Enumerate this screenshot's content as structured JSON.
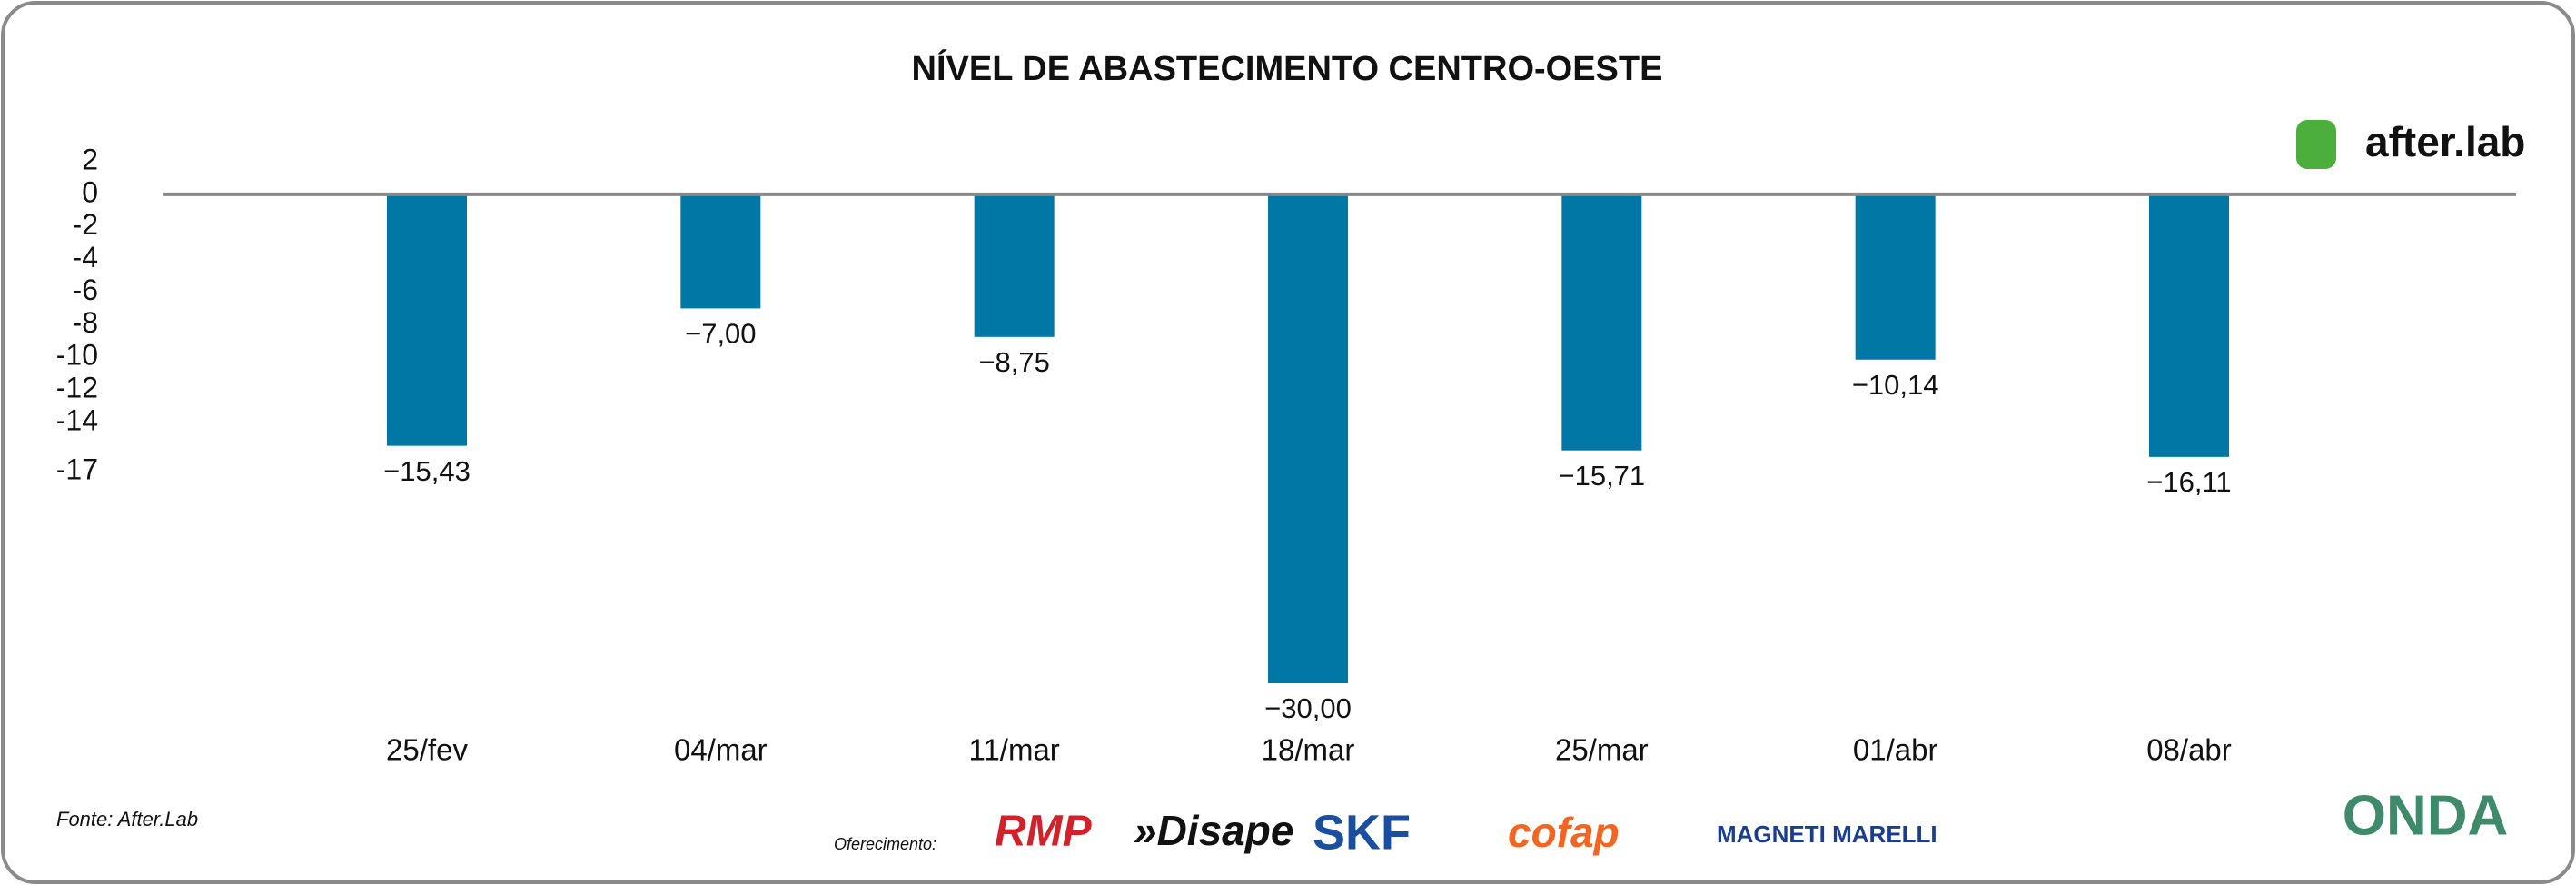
{
  "chart_data": {
    "type": "bar",
    "title": "NÍVEL DE ABASTECIMENTO CENTRO-OESTE",
    "categories": [
      "25/fev",
      "04/mar",
      "11/mar",
      "18/mar",
      "25/mar",
      "01/abr",
      "08/abr"
    ],
    "values": [
      -15.43,
      -7.0,
      -8.75,
      -30.0,
      -15.71,
      -10.14,
      -16.11
    ],
    "value_labels": [
      "−15,43",
      "−7,00",
      "−8,75",
      "−30,00",
      "−15,71",
      "−10,14",
      "−16,11"
    ],
    "color": "#0077a4",
    "ylim": [
      -31,
      3
    ],
    "yticks": [
      2,
      0,
      -2,
      -4,
      -6,
      -8,
      -10,
      -12,
      -14,
      -17
    ],
    "grid": false
  },
  "footer": {
    "source": "Fonte: After.Lab",
    "sponsor_label": "Oferecimento:",
    "sponsors": [
      "RMP",
      "»Disape",
      "SKF",
      "cofap",
      "MAGNETI MARELLI"
    ],
    "brand": "after.lab",
    "partner": "ONDA"
  }
}
